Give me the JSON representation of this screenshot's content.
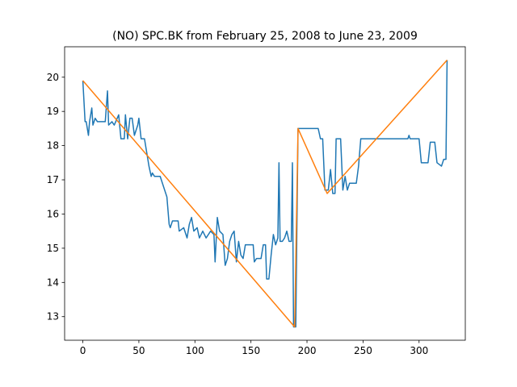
{
  "chart_data": {
    "type": "line",
    "title": "(NO) SPC.BK from February 25, 2008 to June 23, 2009",
    "series": [
      {
        "color": "#1f77b4",
        "x": [
          0,
          2,
          3,
          5,
          6,
          8,
          9,
          11,
          13,
          20,
          22,
          23,
          26,
          28,
          32,
          34,
          37,
          38,
          40,
          42,
          44,
          46,
          49,
          50,
          52,
          55,
          57,
          59,
          61,
          62,
          64,
          69,
          72,
          75,
          77,
          78,
          80,
          85,
          86,
          90,
          93,
          95,
          97,
          99,
          102,
          104,
          107,
          110,
          114,
          117,
          118,
          120,
          122,
          125,
          127,
          129,
          131,
          133,
          135,
          137,
          139,
          141,
          143,
          145,
          152,
          153,
          155,
          159,
          161,
          163,
          164,
          166,
          168,
          170,
          172,
          174,
          175,
          176,
          178,
          180,
          182,
          184,
          186,
          187,
          188,
          190,
          192,
          210,
          212,
          214,
          216,
          219,
          221,
          223,
          225,
          226,
          230,
          232,
          234,
          236,
          238,
          244,
          246,
          248,
          290,
          291,
          292,
          300,
          302,
          308,
          310,
          314,
          316,
          320,
          322,
          324,
          325
        ],
        "values": [
          19.9,
          18.7,
          18.7,
          18.3,
          18.7,
          19.1,
          18.6,
          18.8,
          18.7,
          18.7,
          19.6,
          18.6,
          18.7,
          18.6,
          18.9,
          18.2,
          18.2,
          18.9,
          18.2,
          18.8,
          18.8,
          18.3,
          18.6,
          18.8,
          18.2,
          18.2,
          17.8,
          17.4,
          17.1,
          17.2,
          17.1,
          17.1,
          16.8,
          16.5,
          15.7,
          15.6,
          15.8,
          15.8,
          15.5,
          15.6,
          15.3,
          15.7,
          15.9,
          15.5,
          15.6,
          15.3,
          15.5,
          15.3,
          15.5,
          15.4,
          14.6,
          15.9,
          15.5,
          15.4,
          14.5,
          14.7,
          15.2,
          15.4,
          15.5,
          14.6,
          15.2,
          14.8,
          14.7,
          15.1,
          15.1,
          14.6,
          14.7,
          14.7,
          15.1,
          15.1,
          14.1,
          14.1,
          14.8,
          15.4,
          15.1,
          15.3,
          17.5,
          15.2,
          15.2,
          15.3,
          15.5,
          15.2,
          15.2,
          17.5,
          12.7,
          12.7,
          18.5,
          18.5,
          18.2,
          18.2,
          16.7,
          16.7,
          17.3,
          16.6,
          16.6,
          18.2,
          18.2,
          16.7,
          17.1,
          16.7,
          16.9,
          16.9,
          17.4,
          18.2,
          18.2,
          18.3,
          18.2,
          18.2,
          17.5,
          17.5,
          18.1,
          18.1,
          17.5,
          17.4,
          17.6,
          17.6,
          20.5
        ]
      },
      {
        "color": "#ff7f0e",
        "x": [
          0,
          189,
          192,
          218,
          325
        ],
        "values": [
          19.9,
          12.7,
          18.5,
          16.6,
          20.5
        ]
      }
    ],
    "xlim": [
      -16.25,
      341.25
    ],
    "ylim": [
      12.31,
      20.89
    ],
    "xticks": [
      0,
      50,
      100,
      150,
      200,
      250,
      300
    ],
    "yticks": [
      13,
      14,
      15,
      16,
      17,
      18,
      19,
      20
    ]
  }
}
